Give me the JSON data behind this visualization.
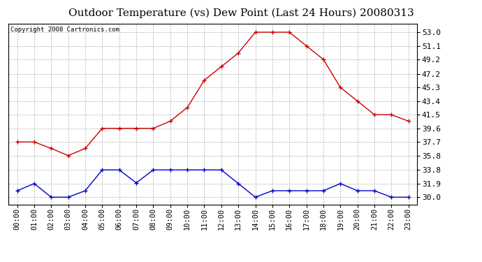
{
  "title": "Outdoor Temperature (vs) Dew Point (Last 24 Hours) 20080313",
  "copyright": "Copyright 2008 Cartronics.com",
  "hours": [
    "00:00",
    "01:00",
    "02:00",
    "03:00",
    "04:00",
    "05:00",
    "06:00",
    "07:00",
    "08:00",
    "09:00",
    "10:00",
    "11:00",
    "12:00",
    "13:00",
    "14:00",
    "15:00",
    "16:00",
    "17:00",
    "18:00",
    "19:00",
    "20:00",
    "21:00",
    "22:00",
    "23:00"
  ],
  "temp": [
    37.7,
    37.7,
    36.8,
    35.8,
    36.8,
    39.6,
    39.6,
    39.6,
    39.6,
    40.6,
    42.5,
    46.3,
    48.2,
    50.1,
    53.0,
    53.0,
    53.0,
    51.1,
    49.2,
    45.3,
    43.4,
    41.5,
    41.5,
    40.6
  ],
  "dew": [
    30.9,
    31.9,
    30.0,
    30.0,
    30.9,
    33.8,
    33.8,
    32.0,
    33.8,
    33.8,
    33.8,
    33.8,
    33.8,
    31.9,
    30.0,
    30.9,
    30.9,
    30.9,
    30.9,
    31.9,
    30.9,
    30.9,
    30.0,
    30.0
  ],
  "temp_color": "#cc0000",
  "dew_color": "#0000cc",
  "grid_color": "#b0b0b0",
  "bg_color": "#ffffff",
  "ytick_values": [
    30.0,
    31.9,
    33.8,
    35.8,
    37.7,
    39.6,
    41.5,
    43.4,
    45.3,
    47.2,
    49.2,
    51.1,
    53.0
  ],
  "ytick_labels": [
    "30.0",
    "31.9",
    "33.8",
    "35.8",
    "37.7",
    "39.6",
    "41.5",
    "43.4",
    "45.3",
    "47.2",
    "49.2",
    "51.1",
    "53.0"
  ],
  "ymin": 29.0,
  "ymax": 54.2,
  "title_fontsize": 11,
  "copyright_fontsize": 6.5,
  "tick_fontsize": 7.5,
  "ytick_fontsize": 8
}
